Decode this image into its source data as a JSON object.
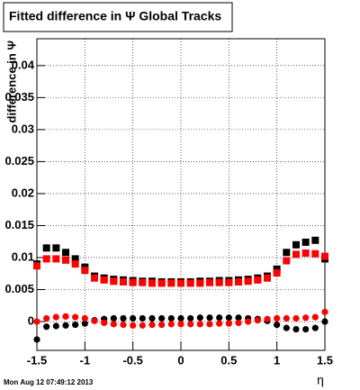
{
  "chart_data": {
    "type": "scatter",
    "title": "Fitted difference in  Ψ   Global Tracks",
    "y_label": "difference in Ψ",
    "x_label": "η",
    "footer": "Mon Aug 12 07:49:12 2013",
    "x": [
      -1.5,
      -1.4,
      -1.3,
      -1.2,
      -1.1,
      -1.0,
      -0.9,
      -0.8,
      -0.7,
      -0.6,
      -0.5,
      -0.4,
      -0.3,
      -0.2,
      -0.1,
      0,
      0.1,
      0.2,
      0.3,
      0.4,
      0.5,
      0.6,
      0.7,
      0.8,
      0.9,
      1.0,
      1.1,
      1.2,
      1.3,
      1.4,
      1.5
    ],
    "series": [
      {
        "color": "#000000",
        "marker": "square",
        "values": [
          0.009,
          0.0115,
          0.0115,
          0.0108,
          0.0098,
          0.0085,
          0.0071,
          0.0068,
          0.0066,
          0.0065,
          0.0064,
          0.0063,
          0.0063,
          0.0062,
          0.0062,
          0.0062,
          0.0062,
          0.0063,
          0.0063,
          0.0064,
          0.0064,
          0.0065,
          0.0066,
          0.0068,
          0.0071,
          0.0082,
          0.0108,
          0.012,
          0.0124,
          0.0127,
          0.0098
        ]
      },
      {
        "color": "#ff0000",
        "marker": "square",
        "values": [
          0.0087,
          0.0098,
          0.0098,
          0.0096,
          0.009,
          0.008,
          0.0068,
          0.0065,
          0.0063,
          0.0062,
          0.0061,
          0.0061,
          0.006,
          0.006,
          0.006,
          0.006,
          0.006,
          0.006,
          0.0061,
          0.0061,
          0.0061,
          0.0062,
          0.0063,
          0.0065,
          0.0068,
          0.0076,
          0.0095,
          0.0105,
          0.0107,
          0.0106,
          0.0102
        ]
      },
      {
        "color": "#000000",
        "marker": "circle",
        "values": [
          -0.0028,
          -0.0008,
          -0.0007,
          -0.0006,
          -0.0005,
          -0.0003,
          0.0002,
          0.0004,
          0.0005,
          0.0005,
          0.0005,
          0.0005,
          0.0005,
          0.0005,
          0.0005,
          0.0005,
          0.0005,
          0.0006,
          0.0006,
          0.0006,
          0.0006,
          0.0006,
          0.0005,
          0.0004,
          0.0001,
          -0.0005,
          -0.001,
          -0.0012,
          -0.0012,
          -0.001,
          0.0
        ]
      },
      {
        "color": "#ff0000",
        "marker": "circle",
        "values": [
          0.0,
          0.0005,
          0.0007,
          0.0008,
          0.0007,
          0.0005,
          0.0001,
          -0.0002,
          -0.0004,
          -0.0005,
          -0.0006,
          -0.0006,
          -0.0005,
          -0.0005,
          -0.0004,
          -0.0004,
          -0.0004,
          -0.0004,
          -0.0004,
          -0.0003,
          -0.0003,
          -0.0002,
          0.0,
          0.0002,
          0.0004,
          0.0005,
          0.0005,
          0.0005,
          0.0006,
          0.0007,
          0.0015
        ]
      }
    ],
    "xlim": [
      -1.5,
      1.5
    ],
    "ylim": [
      -0.0045,
      0.0442
    ],
    "xticks": [
      -1.5,
      -1,
      -0.5,
      0,
      0.5,
      1,
      1.5
    ],
    "yticks": [
      0,
      0.005,
      0.01,
      0.015,
      0.02,
      0.025,
      0.03,
      0.035,
      0.04
    ],
    "grid": true
  }
}
